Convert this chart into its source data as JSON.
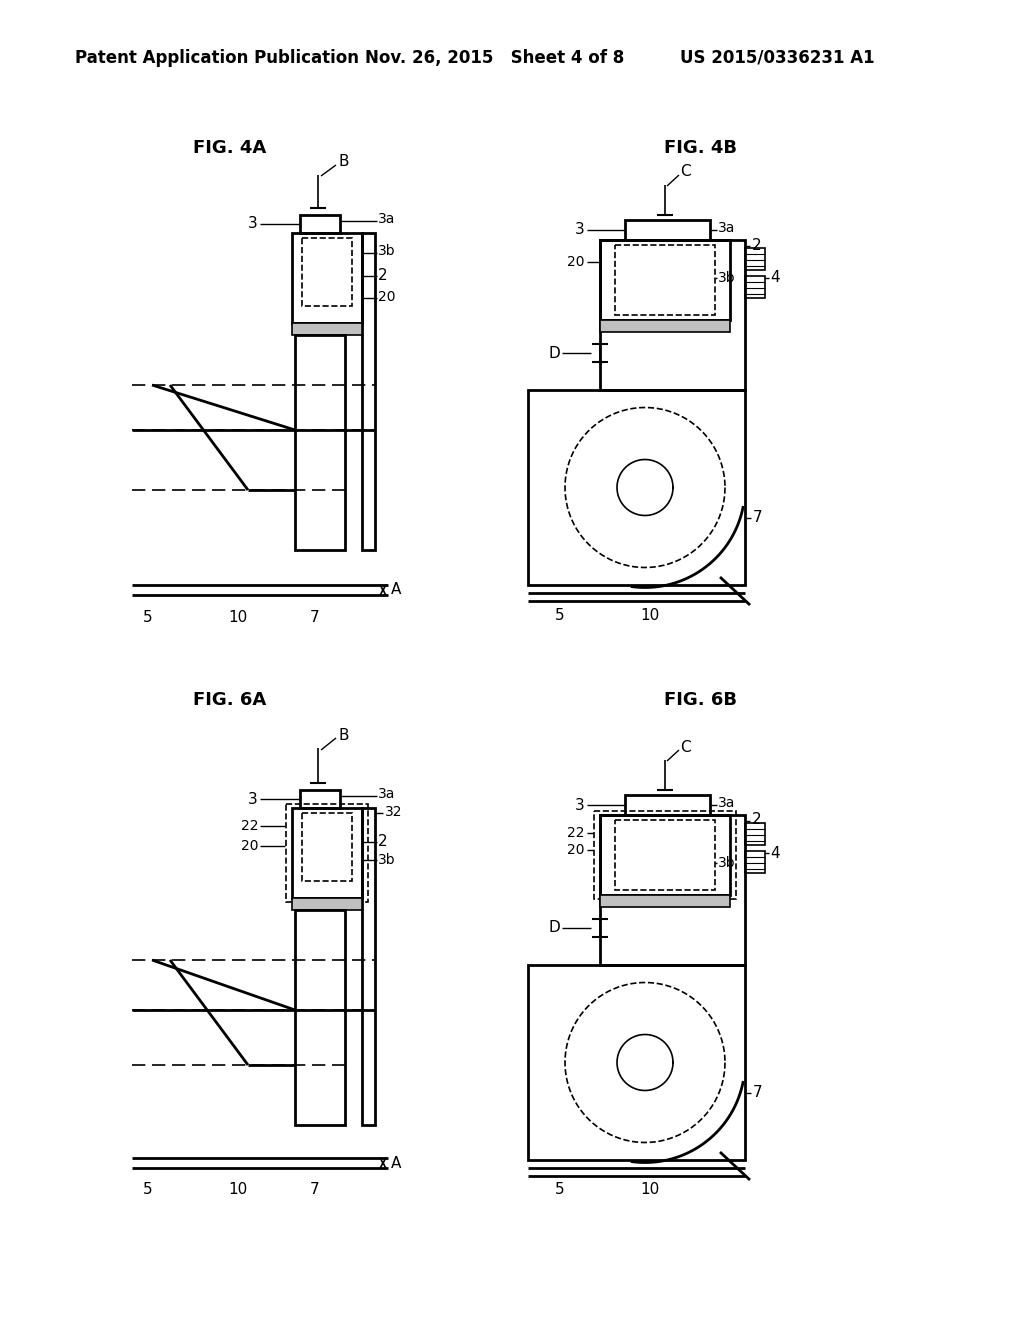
{
  "title_left": "Patent Application Publication",
  "title_center": "Nov. 26, 2015   Sheet 4 of 8",
  "title_right": "US 2015/0336231 A1",
  "background": "#ffffff",
  "line_color": "#000000"
}
